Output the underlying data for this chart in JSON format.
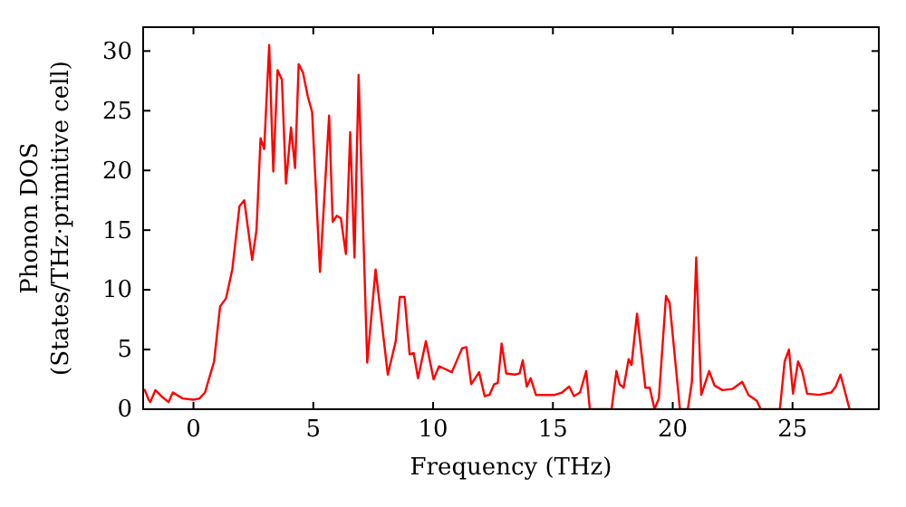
{
  "chart_data": {
    "type": "line",
    "xlabel": "Frequency (THz)",
    "ylabel": "Phonon DOS\n(States/THz·primitive cell)",
    "xlim": [
      -2.1,
      28.6
    ],
    "ylim": [
      0,
      32
    ],
    "xticks": [
      0,
      5,
      10,
      15,
      20,
      25
    ],
    "yticks": [
      0,
      5,
      10,
      15,
      20,
      25,
      30
    ],
    "grid": false,
    "marker": "none",
    "line_style": "solid",
    "series": [
      {
        "color": "#ff0000",
        "x": [
          -2.05,
          -1.87,
          -1.8,
          -1.59,
          -1.29,
          -1.04,
          -0.86,
          -0.45,
          0,
          0.25,
          0.48,
          0.86,
          1.11,
          1.36,
          1.62,
          1.92,
          2.12,
          2.45,
          2.63,
          2.8,
          2.95,
          3.16,
          3.33,
          3.51,
          3.69,
          3.86,
          4.07,
          4.24,
          4.39,
          4.57,
          4.77,
          4.95,
          5.28,
          5.66,
          5.81,
          5.98,
          6.15,
          6.36,
          6.54,
          6.72,
          6.89,
          7.25,
          7.6,
          8.11,
          8.44,
          8.61,
          8.81,
          9.02,
          9.19,
          9.37,
          9.7,
          10.02,
          10.25,
          10.78,
          11.21,
          11.39,
          11.59,
          11.92,
          12.15,
          12.35,
          12.55,
          12.7,
          12.86,
          13.05,
          13.41,
          13.61,
          13.74,
          13.91,
          14.07,
          14.29,
          15.08,
          15.38,
          15.68,
          15.88,
          16.13,
          16.39,
          16.54,
          17.45,
          17.65,
          17.78,
          17.95,
          18.16,
          18.28,
          18.51,
          18.86,
          19.04,
          19.24,
          19.42,
          19.72,
          19.87,
          20.3,
          20.63,
          20.8,
          20.98,
          21.19,
          21.52,
          21.74,
          22.07,
          22.5,
          22.9,
          23.16,
          23.51,
          23.67,
          24.47,
          24.67,
          24.85,
          25.02,
          25.23,
          25.4,
          25.61,
          26.11,
          26.62,
          26.8,
          27.0,
          27.38
        ],
        "values": [
          1.7,
          0.8,
          0.6,
          1.6,
          1.0,
          0.6,
          1.4,
          0.9,
          0.8,
          0.9,
          1.4,
          4.0,
          8.6,
          9.3,
          11.7,
          17.0,
          17.5,
          12.5,
          15.0,
          22.7,
          21.8,
          30.5,
          19.9,
          28.4,
          27.6,
          18.9,
          23.6,
          20.2,
          28.9,
          28.2,
          26.2,
          24.9,
          11.5,
          24.6,
          15.7,
          16.2,
          16.0,
          13.0,
          23.2,
          12.7,
          28.0,
          3.9,
          11.7,
          2.9,
          5.7,
          9.4,
          9.4,
          4.6,
          4.7,
          2.6,
          5.7,
          2.5,
          3.6,
          3.1,
          5.1,
          5.2,
          2.1,
          3.1,
          1.1,
          1.2,
          2.1,
          2.2,
          5.5,
          3.0,
          2.9,
          3.0,
          4.1,
          1.9,
          2.6,
          1.2,
          1.2,
          1.4,
          1.9,
          1.1,
          1.4,
          3.2,
          0,
          0,
          3.2,
          2.1,
          1.8,
          4.2,
          3.7,
          8.0,
          1.8,
          1.8,
          0,
          0.9,
          9.5,
          8.9,
          0,
          0,
          2.3,
          12.7,
          1.2,
          3.2,
          2.0,
          1.6,
          1.7,
          2.3,
          1.2,
          0.7,
          0,
          0,
          4.0,
          5.0,
          1.3,
          4.0,
          3.2,
          1.3,
          1.2,
          1.4,
          1.9,
          2.9,
          0
        ]
      }
    ]
  }
}
